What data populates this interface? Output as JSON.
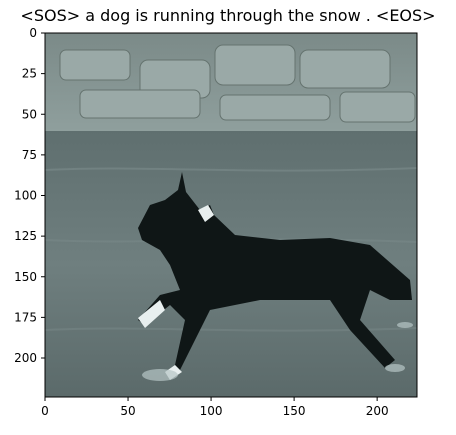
{
  "figure": {
    "title": "<SOS> a dog is running through the snow . <EOS>",
    "image_description": "dog-running-through-water-photo",
    "axes": {
      "x_ticks": [
        "0",
        "50",
        "100",
        "150",
        "200"
      ],
      "y_ticks": [
        "0",
        "25",
        "50",
        "75",
        "100",
        "125",
        "150",
        "175",
        "200"
      ],
      "xlim": [
        0,
        224
      ],
      "ylim": [
        224,
        0
      ]
    }
  }
}
